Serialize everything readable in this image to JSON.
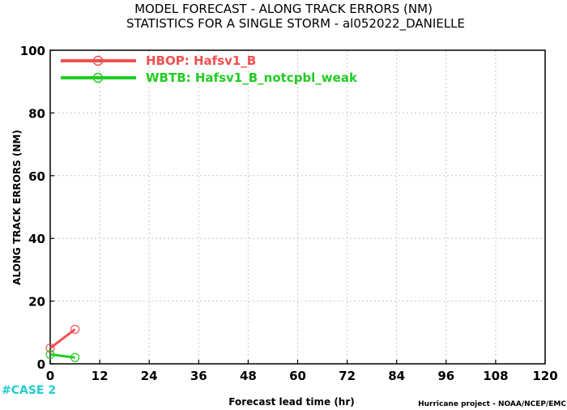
{
  "chart_data": {
    "type": "line",
    "title": "MODEL FORECAST - ALONG TRACK ERRORS (NM)",
    "subtitle": "STATISTICS FOR A SINGLE STORM - al052022_DANIELLE",
    "xlabel": "Forecast lead time (hr)",
    "ylabel": "ALONG TRACK ERRORS (NM)",
    "xlim": [
      0,
      120
    ],
    "ylim": [
      0,
      100
    ],
    "xticks": [
      0,
      12,
      24,
      36,
      48,
      60,
      72,
      84,
      96,
      108,
      120
    ],
    "yticks": [
      0,
      20,
      40,
      60,
      80,
      100
    ],
    "grid": true,
    "legend_position": "top-left",
    "series": [
      {
        "name": "HBOP: Hafsv1_B",
        "color": "#f05050",
        "x": [
          0,
          6
        ],
        "y": [
          5,
          11
        ]
      },
      {
        "name": "WBTB: Hafsv1_B_notcpbl_weak",
        "color": "#22cc22",
        "x": [
          0,
          6
        ],
        "y": [
          3,
          2
        ]
      }
    ],
    "annotations": {
      "case": "#CASE  2",
      "credit": "Hurricane project - NOAA/NCEP/EMC"
    },
    "annotation_colors": {
      "case": "#22cccc"
    }
  }
}
